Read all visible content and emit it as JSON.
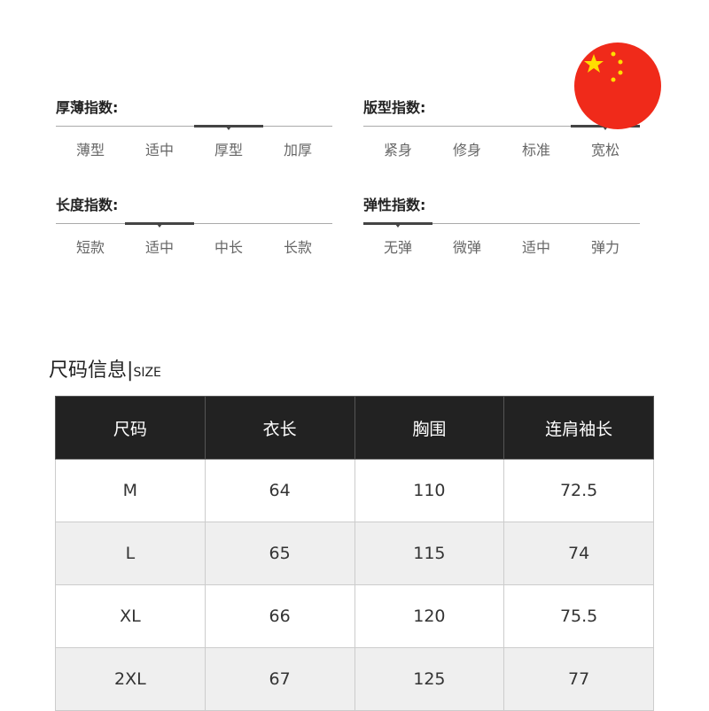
{
  "indices": [
    {
      "title": "厚薄指数:",
      "options": [
        "薄型",
        "适中",
        "厚型",
        "加厚"
      ],
      "selected_index": 2
    },
    {
      "title": "版型指数:",
      "options": [
        "紧身",
        "修身",
        "标准",
        "宽松"
      ],
      "selected_index": 3
    },
    {
      "title": "长度指数:",
      "options": [
        "短款",
        "适中",
        "中长",
        "长款"
      ],
      "selected_index": 1
    },
    {
      "title": "弹性指数:",
      "options": [
        "无弹",
        "微弹",
        "适中",
        "弹力"
      ],
      "selected_index": 0
    }
  ],
  "flag": {
    "icon": "china-flag-icon",
    "red": "#f02a1a",
    "star": "#ffde00"
  },
  "size_section": {
    "title": "尺码信息",
    "separator": "|",
    "subtitle": "SIZE"
  },
  "size_table": {
    "headers": [
      "尺码",
      "衣长",
      "胸围",
      "连肩袖长"
    ],
    "rows": [
      [
        "M",
        "64",
        "110",
        "72.5"
      ],
      [
        "L",
        "65",
        "115",
        "74"
      ],
      [
        "XL",
        "66",
        "120",
        "75.5"
      ],
      [
        "2XL",
        "67",
        "125",
        "77"
      ]
    ]
  }
}
